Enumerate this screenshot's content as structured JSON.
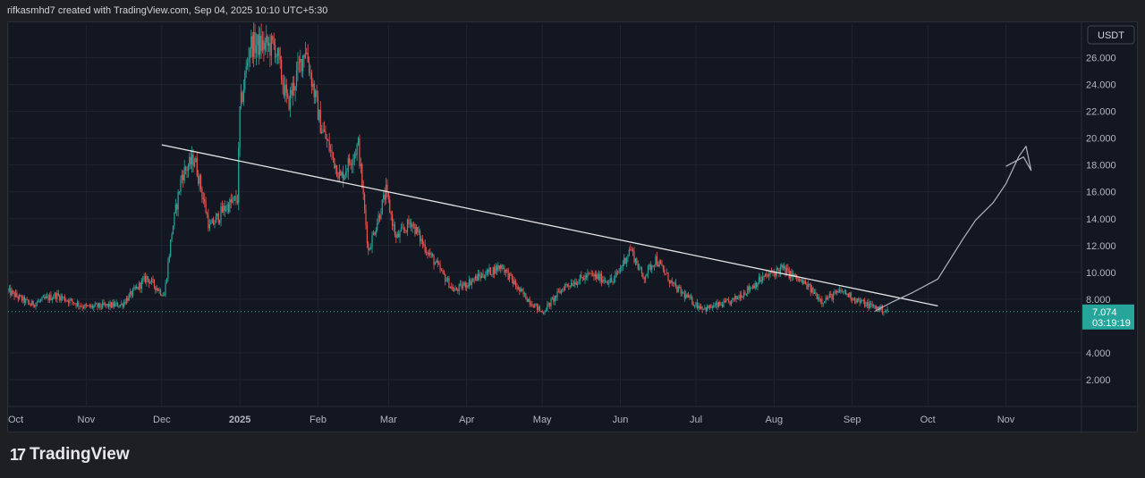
{
  "header": {
    "attribution": "rifkasmhd7 created with TradingView.com, Sep 04, 2025 10:10 UTC+5:30"
  },
  "footer": {
    "logo_mark": "17",
    "brand": "TradingView"
  },
  "colors": {
    "background": "#131722",
    "page": "#1e1f23",
    "up": "#26a69a",
    "down": "#ef5350",
    "price_tag": "#26a69a",
    "trendline": "#e6e6e6",
    "projection": "#b2b5be",
    "axis_text": "#b2b5be"
  },
  "chart_data": {
    "type": "candlestick",
    "currency_badge": "USDT",
    "y_ticks": [
      "26.000",
      "24.000",
      "22.000",
      "20.000",
      "18.000",
      "16.000",
      "14.000",
      "12.000",
      "10.000",
      "8.000",
      "4.000",
      "2.000"
    ],
    "ylim": [
      0,
      28.5
    ],
    "x_labels": [
      "Oct",
      "Nov",
      "Dec",
      "2025",
      "Feb",
      "Mar",
      "Apr",
      "May",
      "Jun",
      "Jul",
      "Aug",
      "Sep",
      "Oct",
      "Nov"
    ],
    "x_label_dates": [
      "2024-10-01",
      "2024-11-01",
      "2024-12-01",
      "2025-01-01",
      "2025-02-01",
      "2025-03-01",
      "2025-04-01",
      "2025-05-01",
      "2025-06-01",
      "2025-07-01",
      "2025-08-01",
      "2025-09-01",
      "2025-10-01",
      "2025-11-01"
    ],
    "xlim": [
      "2024-10-01",
      "2025-12-01"
    ],
    "current_price": "7.074",
    "countdown": "03:19:19",
    "current_price_value": 7.074,
    "price_path": [
      [
        "2024-10-01",
        8.6
      ],
      [
        "2024-10-10",
        7.6
      ],
      [
        "2024-10-20",
        8.3
      ],
      [
        "2024-11-01",
        7.4
      ],
      [
        "2024-11-15",
        7.6
      ],
      [
        "2024-11-25",
        9.6
      ],
      [
        "2024-12-02",
        8.3
      ],
      [
        "2024-12-05",
        13.0
      ],
      [
        "2024-12-09",
        17.3
      ],
      [
        "2024-12-14",
        18.5
      ],
      [
        "2024-12-20",
        13.3
      ],
      [
        "2024-12-26",
        14.8
      ],
      [
        "2024-12-31",
        15.5
      ],
      [
        "2025-01-01",
        22.0
      ],
      [
        "2025-01-05",
        27.0
      ],
      [
        "2025-01-15",
        26.8
      ],
      [
        "2025-01-20",
        22.5
      ],
      [
        "2025-01-27",
        26.8
      ],
      [
        "2025-02-02",
        21.0
      ],
      [
        "2025-02-10",
        17.0
      ],
      [
        "2025-02-17",
        19.5
      ],
      [
        "2025-02-21",
        11.6
      ],
      [
        "2025-02-28",
        16.0
      ],
      [
        "2025-03-04",
        12.5
      ],
      [
        "2025-03-10",
        13.8
      ],
      [
        "2025-03-15",
        12.0
      ],
      [
        "2025-03-22",
        10.0
      ],
      [
        "2025-03-27",
        8.6
      ],
      [
        "2025-04-04",
        9.5
      ],
      [
        "2025-04-15",
        10.5
      ],
      [
        "2025-04-22",
        8.6
      ],
      [
        "2025-05-01",
        7.0
      ],
      [
        "2025-05-10",
        9.0
      ],
      [
        "2025-05-20",
        9.8
      ],
      [
        "2025-05-29",
        9.3
      ],
      [
        "2025-06-01",
        10.3
      ],
      [
        "2025-06-05",
        11.8
      ],
      [
        "2025-06-10",
        9.6
      ],
      [
        "2025-06-15",
        11.0
      ],
      [
        "2025-06-22",
        9.0
      ],
      [
        "2025-07-01",
        7.6
      ],
      [
        "2025-07-05",
        7.3
      ],
      [
        "2025-07-15",
        7.8
      ],
      [
        "2025-07-27",
        9.5
      ],
      [
        "2025-08-04",
        10.3
      ],
      [
        "2025-08-14",
        9.0
      ],
      [
        "2025-08-20",
        7.9
      ],
      [
        "2025-08-28",
        8.6
      ],
      [
        "2025-09-04",
        7.8
      ],
      [
        "2025-09-10",
        7.4
      ],
      [
        "2025-09-15",
        7.1
      ]
    ],
    "trendline": [
      [
        "2024-12-01",
        19.5
      ],
      [
        "2025-10-05",
        7.5
      ]
    ],
    "projection": [
      [
        "2025-09-10",
        7.1
      ],
      [
        "2025-09-17",
        7.8
      ],
      [
        "2025-09-25",
        8.5
      ],
      [
        "2025-10-05",
        9.5
      ],
      [
        "2025-10-10",
        11.0
      ],
      [
        "2025-10-15",
        12.5
      ],
      [
        "2025-10-20",
        13.9
      ],
      [
        "2025-10-27",
        15.2
      ],
      [
        "2025-11-01",
        16.6
      ],
      [
        "2025-11-06",
        18.6
      ],
      [
        "2025-11-09",
        19.4
      ],
      [
        "2025-11-11",
        17.6
      ],
      [
        "2025-11-08",
        18.6
      ],
      [
        "2025-11-04",
        18.2
      ],
      [
        "2025-11-01",
        17.9
      ]
    ]
  }
}
